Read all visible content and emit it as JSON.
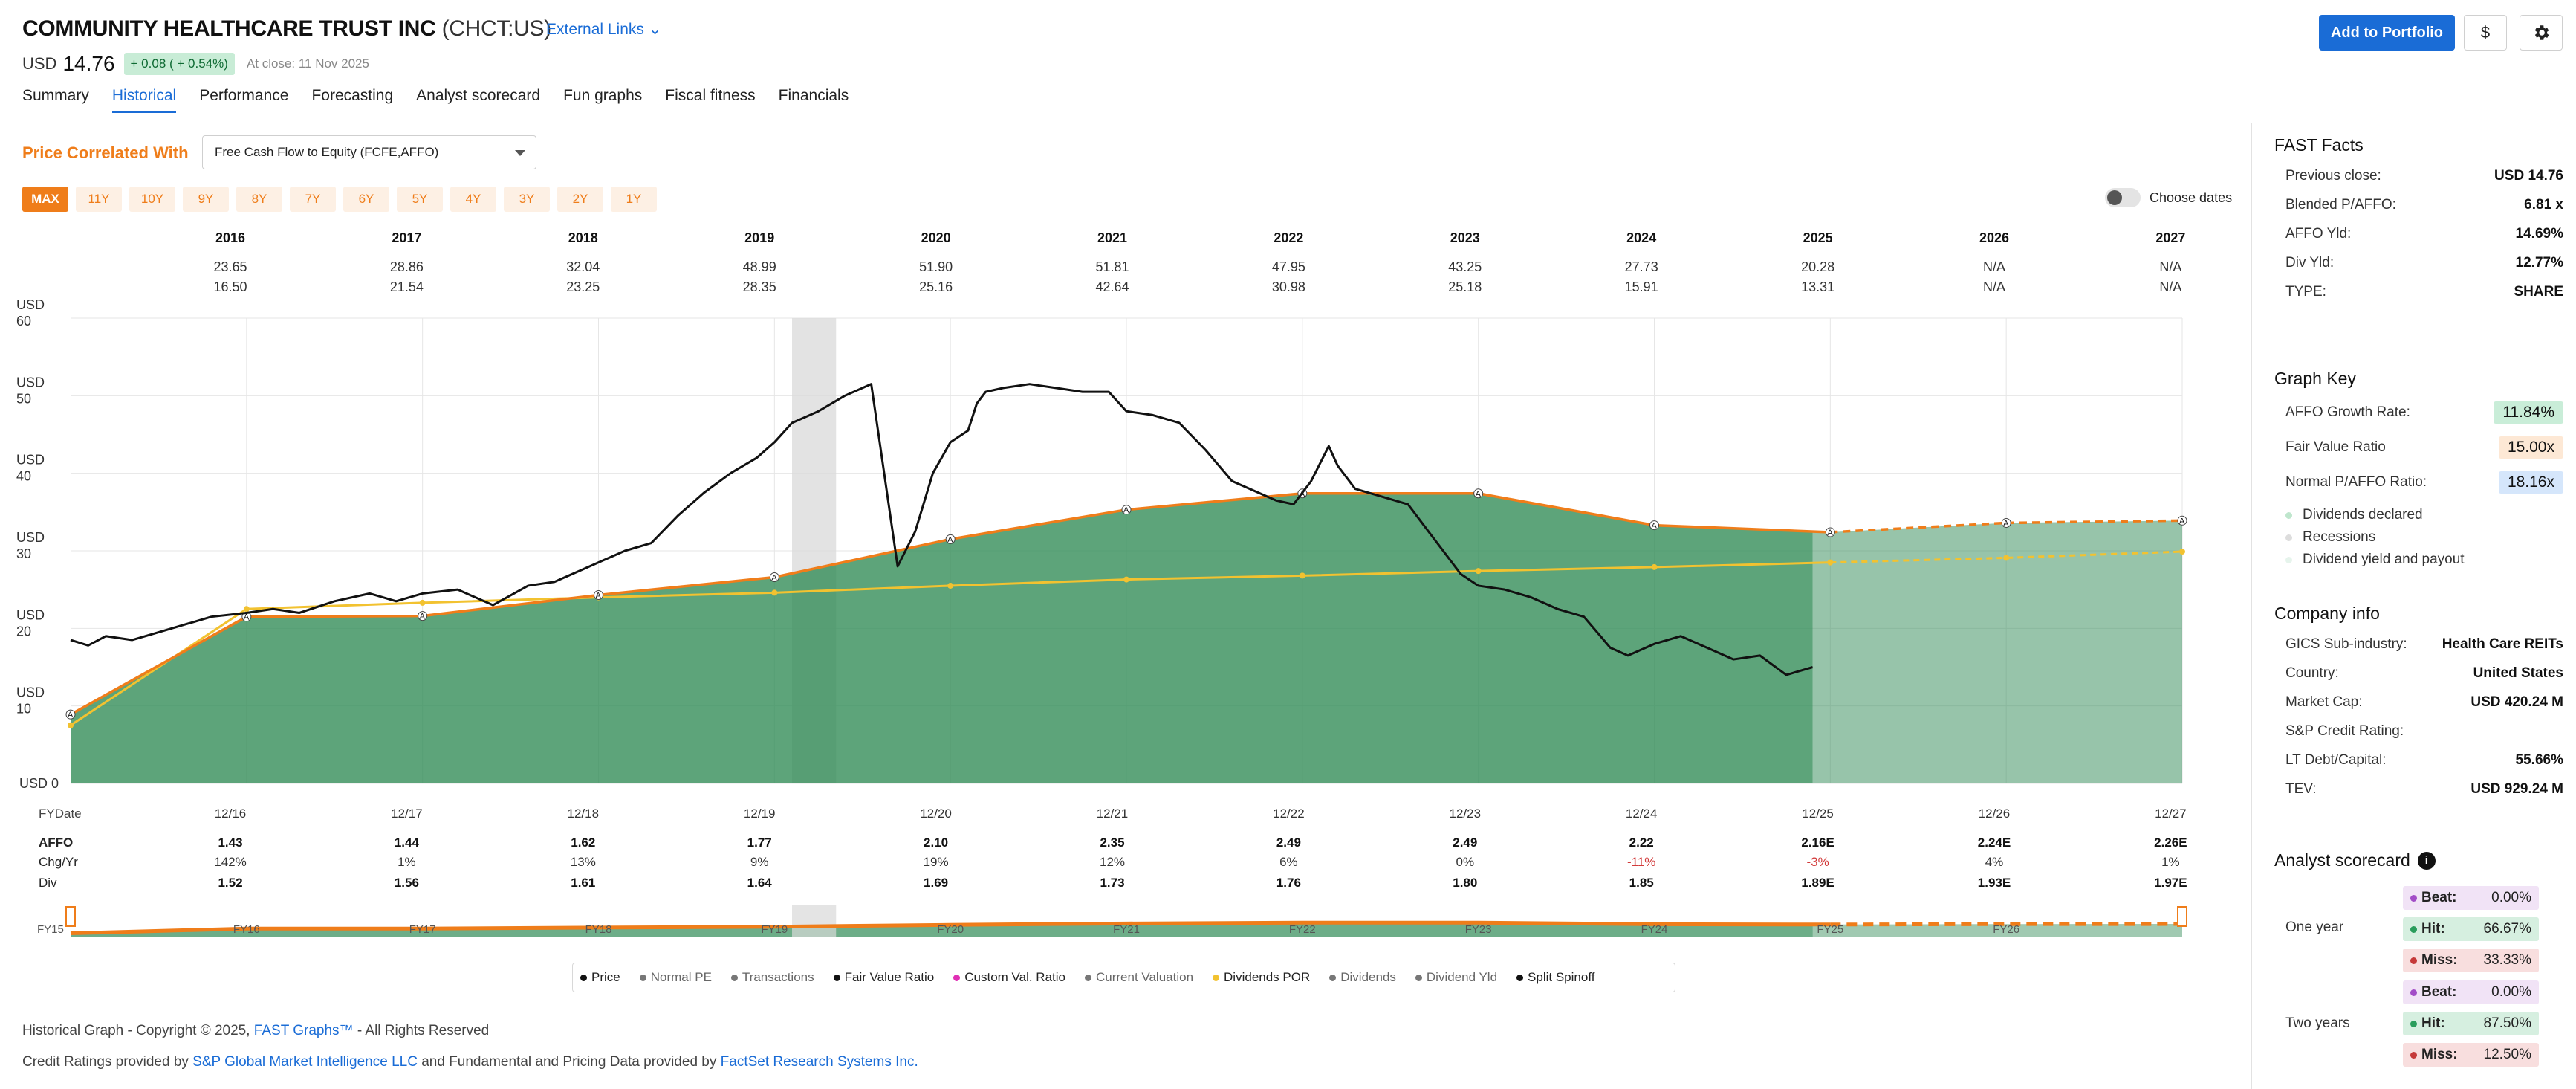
{
  "header": {
    "company": "COMMUNITY HEALTHCARE TRUST INC",
    "ticker": "(CHCT:US)",
    "external_links": "External Links",
    "currency": "USD",
    "price": "14.76",
    "change": "+ 0.08 ( + 0.54%)",
    "at_close": "At close: 11 Nov 2025",
    "add_portfolio": "Add to Portfolio",
    "dollar_btn": "$"
  },
  "tabs": [
    "Summary",
    "Historical",
    "Performance",
    "Forecasting",
    "Analyst scorecard",
    "Fun graphs",
    "Fiscal fitness",
    "Financials"
  ],
  "controls": {
    "price_correlated_label": "Price Correlated With",
    "correlated_value": "Free Cash Flow to Equity (FCFE,AFFO)",
    "ranges": [
      "MAX",
      "11Y",
      "10Y",
      "9Y",
      "8Y",
      "7Y",
      "6Y",
      "5Y",
      "4Y",
      "3Y",
      "2Y",
      "1Y"
    ],
    "choose_dates": "Choose dates"
  },
  "year_table": {
    "years": [
      "2016",
      "2017",
      "2018",
      "2019",
      "2020",
      "2021",
      "2022",
      "2023",
      "2024",
      "2025",
      "2026",
      "2027"
    ],
    "high": [
      "23.65",
      "28.86",
      "32.04",
      "48.99",
      "51.90",
      "51.81",
      "47.95",
      "43.25",
      "27.73",
      "20.28",
      "N/A",
      "N/A"
    ],
    "low": [
      "16.50",
      "21.54",
      "23.25",
      "28.35",
      "25.16",
      "42.64",
      "30.98",
      "25.18",
      "15.91",
      "13.31",
      "N/A",
      "N/A"
    ]
  },
  "fundamentals": {
    "fydate_label": "FYDate",
    "dates": [
      "12/16",
      "12/17",
      "12/18",
      "12/19",
      "12/20",
      "12/21",
      "12/22",
      "12/23",
      "12/24",
      "12/25",
      "12/26",
      "12/27"
    ],
    "affo_label": "AFFO",
    "affo": [
      "1.43",
      "1.44",
      "1.62",
      "1.77",
      "2.10",
      "2.35",
      "2.49",
      "2.49",
      "2.22",
      "2.16E",
      "2.24E",
      "2.26E"
    ],
    "chg_label": "Chg/Yr",
    "chg": [
      "142%",
      "1%",
      "13%",
      "9%",
      "19%",
      "12%",
      "6%",
      "0%",
      "-11%",
      "-3%",
      "4%",
      "1%"
    ],
    "div_label": "Div",
    "div": [
      "1.52",
      "1.56",
      "1.61",
      "1.64",
      "1.69",
      "1.73",
      "1.76",
      "1.80",
      "1.85",
      "1.89E",
      "1.93E",
      "1.97E"
    ],
    "overview_labels": [
      "FY15",
      "FY16",
      "FY17",
      "FY18",
      "FY19",
      "FY20",
      "FY21",
      "FY22",
      "FY23",
      "FY24",
      "FY25",
      "FY26"
    ]
  },
  "legend": {
    "items": [
      {
        "label": "Price",
        "on": true,
        "color": "#111111"
      },
      {
        "label": "Normal PE",
        "on": false,
        "color": "#777777"
      },
      {
        "label": "Transactions",
        "on": false,
        "color": "#777777"
      },
      {
        "label": "Fair Value Ratio",
        "on": true,
        "color": "#111111"
      },
      {
        "label": "Custom Val. Ratio",
        "on": true,
        "color": "#e02fb5"
      },
      {
        "label": "Current Valuation",
        "on": false,
        "color": "#777777"
      },
      {
        "label": "Dividends POR",
        "on": true,
        "color": "#f2c230"
      },
      {
        "label": "Dividends",
        "on": false,
        "color": "#777777"
      },
      {
        "label": "Dividend Yld",
        "on": false,
        "color": "#777777"
      },
      {
        "label": "Split Spinoff",
        "on": true,
        "color": "#111111"
      }
    ]
  },
  "footer": {
    "line1_a": "Historical Graph - Copyright © 2025, ",
    "line1_link": "FAST Graphs™",
    "line1_b": " - All Rights Reserved",
    "line2_a": "Credit Ratings provided by ",
    "line2_link1": "S&P Global Market Intelligence LLC",
    "line2_b": " and Fundamental and Pricing Data provided by ",
    "line2_link2": "FactSet Research Systems Inc."
  },
  "fast_facts": {
    "title": "FAST Facts",
    "rows": [
      {
        "k": "Previous close:",
        "v": "USD 14.76"
      },
      {
        "k": "Blended P/AFFO:",
        "v": "6.81 x"
      },
      {
        "k": "AFFO Yld:",
        "v": "14.69%"
      },
      {
        "k": "Div Yld:",
        "v": "12.77%"
      },
      {
        "k": "TYPE:",
        "v": "SHARE"
      }
    ]
  },
  "graph_key": {
    "title": "Graph Key",
    "affo_growth_label": "AFFO Growth Rate:",
    "affo_growth": "11.84%",
    "fair_value_label": "Fair Value Ratio",
    "fair_value": "15.00x",
    "normal_label": "Normal P/AFFO Ratio:",
    "normal": "18.16x",
    "dividends_declared": "Dividends declared",
    "recessions": "Recessions",
    "div_yield_payout": "Dividend yield and payout"
  },
  "company_info": {
    "title": "Company info",
    "rows": [
      {
        "k": "GICS Sub-industry:",
        "v": "Health Care REITs"
      },
      {
        "k": "Country:",
        "v": "United States"
      },
      {
        "k": "Market Cap:",
        "v": "USD 420.24 M"
      },
      {
        "k": "S&P Credit Rating:",
        "v": ""
      },
      {
        "k": "LT Debt/Capital:",
        "v": "55.66%"
      },
      {
        "k": "TEV:",
        "v": "USD 929.24 M"
      }
    ]
  },
  "analyst_scorecard": {
    "title": "Analyst scorecard",
    "one_year": "One year",
    "two_years": "Two years",
    "beat_label": "Beat:",
    "hit_label": "Hit:",
    "miss_label": "Miss:",
    "one_year_beat": "0.00%",
    "one_year_hit": "66.67%",
    "one_year_miss": "33.33%",
    "two_years_beat": "0.00%",
    "two_years_hit": "87.50%",
    "two_years_miss": "12.50%"
  },
  "chart_data": {
    "type": "area",
    "y_axis_labels": [
      "USD 0",
      "USD 10",
      "USD 20",
      "USD 30",
      "USD 40",
      "USD 50",
      "USD 60"
    ],
    "ylim": [
      0,
      60
    ],
    "x_start": 2015.0,
    "fair_value_line": {
      "x": [
        2015.0,
        2016.0,
        2017.0,
        2018.0,
        2019.0,
        2020.0,
        2021.0,
        2022.0,
        2023.0,
        2024.0,
        2025.0,
        2026.0,
        2027.0
      ],
      "y": [
        8.9,
        21.5,
        21.6,
        24.3,
        26.6,
        31.5,
        35.3,
        37.4,
        37.4,
        33.3,
        32.4,
        33.6,
        33.9
      ],
      "estimate_from": 2025.0
    },
    "normal_ratio_line": {
      "x": [
        2015.0,
        2016.0,
        2017.0,
        2018.0,
        2019.0,
        2020.0,
        2021.0,
        2022.0,
        2023.0,
        2024.0,
        2025.0,
        2026.0,
        2027.0
      ],
      "y": [
        7.5,
        22.5,
        23.3,
        24.0,
        24.6,
        25.5,
        26.3,
        26.8,
        27.4,
        27.9,
        28.5,
        29.1,
        29.9
      ]
    },
    "price_line": {
      "x": [
        2015.0,
        2015.1,
        2015.2,
        2015.35,
        2015.5,
        2015.65,
        2015.8,
        2016.0,
        2016.15,
        2016.3,
        2016.5,
        2016.7,
        2016.85,
        2017.0,
        2017.2,
        2017.4,
        2017.6,
        2017.75,
        2017.9,
        2018.0,
        2018.15,
        2018.3,
        2018.45,
        2018.6,
        2018.75,
        2018.9,
        2019.0,
        2019.1,
        2019.25,
        2019.4,
        2019.55,
        2019.7,
        2019.8,
        2019.9,
        2020.0,
        2020.1,
        2020.15,
        2020.2,
        2020.3,
        2020.45,
        2020.6,
        2020.75,
        2020.9,
        2021.0,
        2021.15,
        2021.3,
        2021.45,
        2021.6,
        2021.75,
        2021.85,
        2021.95,
        2022.05,
        2022.15,
        2022.2,
        2022.3,
        2022.45,
        2022.6,
        2022.75,
        2022.9,
        2023.0,
        2023.15,
        2023.3,
        2023.45,
        2023.6,
        2023.75,
        2023.85,
        2024.0,
        2024.15,
        2024.3,
        2024.45,
        2024.6,
        2024.75,
        2024.9
      ],
      "y": [
        18.5,
        17.8,
        19.0,
        18.5,
        19.5,
        20.5,
        21.5,
        22.0,
        22.5,
        22.0,
        23.5,
        24.5,
        23.5,
        24.5,
        25.0,
        23.0,
        25.5,
        26.0,
        27.5,
        28.5,
        30.0,
        31.0,
        34.5,
        37.5,
        40.0,
        42.0,
        44.0,
        46.5,
        48.0,
        50.0,
        51.5,
        28.0,
        32.5,
        40.0,
        44.0,
        45.5,
        49.0,
        50.5,
        51.0,
        51.5,
        51.0,
        50.5,
        50.5,
        48.0,
        47.5,
        46.5,
        43.0,
        39.0,
        37.5,
        36.5,
        36.0,
        39.0,
        43.5,
        41.0,
        38.0,
        37.0,
        36.0,
        31.5,
        27.0,
        25.5,
        25.0,
        24.0,
        22.5,
        21.5,
        17.5,
        16.5,
        18.0,
        19.0,
        17.5,
        16.0,
        16.5,
        14.0,
        15.0
      ]
    },
    "projection_region_start": 2024.9,
    "recession_band": [
      2019.1,
      2019.35
    ]
  }
}
